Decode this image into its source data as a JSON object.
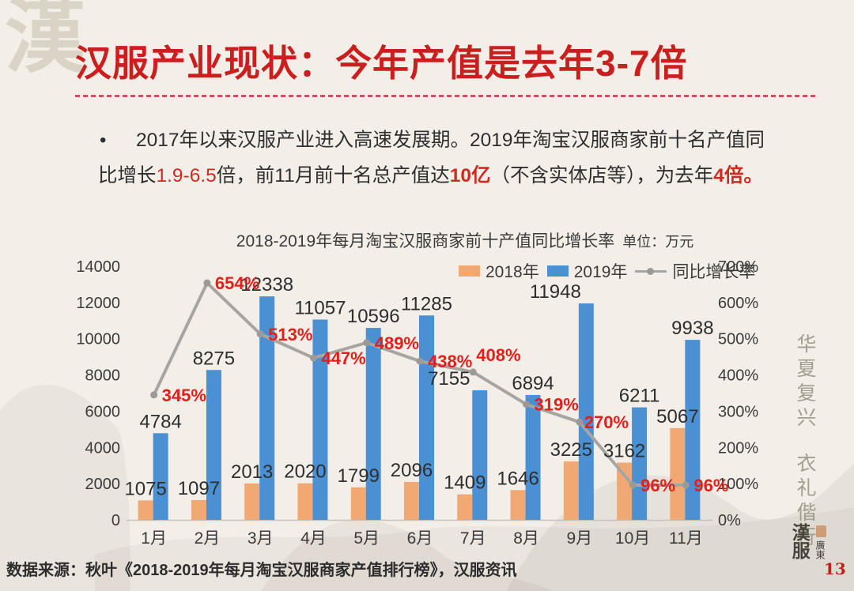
{
  "page": {
    "background": "#F3EFE8",
    "watermark_char": "漢",
    "page_number": "13"
  },
  "header": {
    "title": "汉服产业现状：今年产值是去年3-7倍",
    "title_color": "#CB1F1F"
  },
  "bullet": {
    "marker": "•",
    "line1": [
      {
        "text": "2017年以来汉服产业进入高速发展期。2019年淘宝汉服商家前十名产值同",
        "style": "normal"
      }
    ],
    "line2": [
      {
        "text": "比增长",
        "style": "normal"
      },
      {
        "text": "1.9-6.5",
        "style": "red"
      },
      {
        "text": "倍，前11月前十名总产值达",
        "style": "normal"
      },
      {
        "text": "10亿",
        "style": "red-bold"
      },
      {
        "text": "（不含实体店等），为去年",
        "style": "normal"
      },
      {
        "text": "4倍。",
        "style": "red-bold"
      }
    ]
  },
  "chart_data": {
    "type": "bar+line",
    "title": "2018-2019年每月淘宝汉服商家前十产值同比增长率",
    "unit_label": "单位：万元",
    "categories": [
      "1月",
      "2月",
      "3月",
      "4月",
      "5月",
      "6月",
      "7月",
      "8月",
      "9月",
      "10月",
      "11月"
    ],
    "series": [
      {
        "name": "2018年",
        "color": "#F2A873",
        "values": [
          1075,
          1097,
          2013,
          2020,
          1799,
          2096,
          1409,
          1646,
          3225,
          3162,
          5067
        ],
        "label_dx": [
          0,
          0,
          0,
          0,
          0,
          0,
          0,
          0,
          0,
          0,
          0
        ]
      },
      {
        "name": "2019年",
        "color": "#4A90D2",
        "values": [
          4784,
          8275,
          12338,
          11057,
          10596,
          11285,
          7155,
          6894,
          11948,
          6211,
          9938
        ],
        "label_dx": [
          0,
          0,
          0,
          0,
          0,
          0,
          -39,
          0,
          -39,
          0,
          0
        ]
      }
    ],
    "line_series": {
      "name": "同比增长率",
      "color": "#A7A5A2",
      "marker_color": "#9C9A97",
      "values": [
        345,
        654,
        513,
        447,
        489,
        438,
        408,
        319,
        270,
        96,
        96
      ],
      "labels": [
        "345%",
        "654%",
        "513%",
        "447%",
        "489%",
        "438%",
        "408%",
        "319%",
        "270%",
        "96%",
        "96%"
      ],
      "label_color": "#E41E1A",
      "label_dx": [
        0,
        0,
        0,
        0,
        0,
        0,
        -6,
        0,
        -4,
        0,
        0
      ],
      "label_dy": [
        0,
        0,
        0,
        0,
        0,
        0,
        -22,
        0,
        0,
        0,
        0
      ]
    },
    "left_axis": {
      "ticks": [
        0,
        2000,
        4000,
        6000,
        8000,
        10000,
        12000,
        14000
      ],
      "max": 14000
    },
    "right_axis": {
      "ticks": [
        "0%",
        "100%",
        "200%",
        "300%",
        "400%",
        "500%",
        "600%",
        "700%"
      ],
      "max": 700
    },
    "value_label_color": "#2E2E2E",
    "axis_text_color": "#3A3A3A",
    "grid": false,
    "legend_position": "top-right"
  },
  "side_text": {
    "phrase1": "华夏复兴",
    "phrase2": "衣礼偕行"
  },
  "footer": {
    "source": "数据来源：秋叶《2018-2019年每月淘宝汉服商家产值排行榜》，汉服资讯"
  },
  "logo": {
    "main": "漢服",
    "sub": "廣東"
  }
}
